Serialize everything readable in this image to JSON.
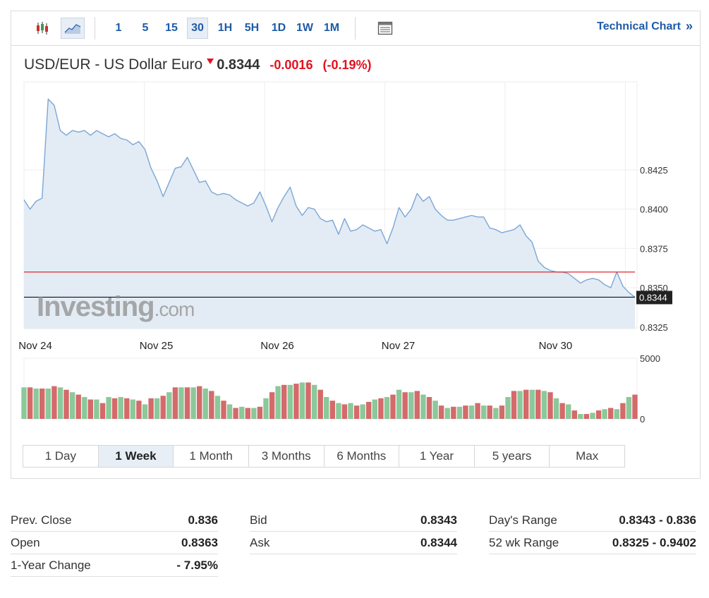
{
  "toolbar": {
    "chart_type_icons": [
      "candlestick-icon",
      "area-chart-icon"
    ],
    "timeframes": [
      "1",
      "5",
      "15",
      "30",
      "1H",
      "5H",
      "1D",
      "1W",
      "1M"
    ],
    "active_timeframe": "30",
    "layout_icon": "chart-layout-icon",
    "technical_chart_label": "Technical Chart",
    "technical_chart_arrow": "»"
  },
  "headline": {
    "name": "USD/EUR - US Dollar Euro",
    "last": "0.8344",
    "change": "-0.0016",
    "change_pct": "(-0.19%)"
  },
  "colors": {
    "line": "#7ba6d6",
    "area": "#e3ecf4",
    "prev_close_line": "#e2262b",
    "last_line": "#111111",
    "vol_up": "#8bc89a",
    "vol_down": "#d46a6a",
    "negative": "#e4101f",
    "link": "#1e5ba7"
  },
  "watermark": "Investing.com",
  "last_price_label": "0.8344",
  "chart_data": {
    "type": "area",
    "title": "USD/EUR - US Dollar Euro",
    "xlabel": "",
    "ylabel": "",
    "ylim": [
      0.8324,
      0.8481
    ],
    "y_ticks": [
      "0.8425",
      "0.8400",
      "0.8375",
      "0.8350",
      "0.8325"
    ],
    "y_tick_values": [
      0.8425,
      0.84,
      0.8375,
      0.835,
      0.8325
    ],
    "x_tick_labels": [
      "Nov 24",
      "Nov 25",
      "Nov 26",
      "Nov 27",
      "Nov 30"
    ],
    "x_tick_positions": [
      0.5,
      20.5,
      40.5,
      60.5,
      86.5
    ],
    "x_range": [
      0,
      101
    ],
    "prev_close": 0.836,
    "last": 0.8344,
    "grid": true,
    "legend": "none",
    "series": [
      {
        "values": [
          0.8406,
          0.84,
          0.8405,
          0.8407,
          0.847,
          0.8466,
          0.845,
          0.8447,
          0.845,
          0.8449,
          0.845,
          0.8447,
          0.845,
          0.8448,
          0.8446,
          0.8448,
          0.8445,
          0.8444,
          0.8441,
          0.8443,
          0.8438,
          0.8426,
          0.8418,
          0.8408,
          0.8417,
          0.8426,
          0.8427,
          0.8433,
          0.8425,
          0.8417,
          0.8418,
          0.8411,
          0.8409,
          0.841,
          0.8409,
          0.8406,
          0.8404,
          0.8402,
          0.8404,
          0.8411,
          0.8402,
          0.8392,
          0.8401,
          0.8408,
          0.8414,
          0.8402,
          0.8396,
          0.8401,
          0.84,
          0.8394,
          0.8392,
          0.8393,
          0.8384,
          0.8394,
          0.8386,
          0.8387,
          0.839,
          0.8388,
          0.8386,
          0.8387,
          0.8378,
          0.8388,
          0.8401,
          0.8395,
          0.84,
          0.841,
          0.8405,
          0.8408,
          0.84,
          0.8396,
          0.8393,
          0.8393,
          0.8394,
          0.8395,
          0.8396,
          0.8395,
          0.8395,
          0.8388,
          0.8387,
          0.8385,
          0.8386,
          0.8387,
          0.839,
          0.8383,
          0.8379,
          0.8367,
          0.8363,
          0.8361,
          0.836,
          0.836,
          0.8359,
          0.8356,
          0.8353,
          0.8355,
          0.8356,
          0.8355,
          0.8352,
          0.835,
          0.836,
          0.8351,
          0.8347,
          0.8344
        ]
      }
    ],
    "volume": {
      "ylim": [
        0,
        5000
      ],
      "y_ticks": [
        "5000",
        "0"
      ],
      "y_tick_values": [
        5000,
        0
      ],
      "values": [
        2600,
        2600,
        2500,
        2500,
        2500,
        2700,
        2600,
        2400,
        2200,
        2000,
        1800,
        1600,
        1600,
        1300,
        1800,
        1700,
        1800,
        1700,
        1600,
        1500,
        1200,
        1700,
        1700,
        1900,
        2200,
        2600,
        2600,
        2600,
        2600,
        2700,
        2500,
        2300,
        1900,
        1500,
        1200,
        900,
        1000,
        900,
        900,
        1000,
        1700,
        2200,
        2700,
        2800,
        2800,
        2900,
        3000,
        3000,
        2800,
        2400,
        1800,
        1500,
        1300,
        1200,
        1300,
        1100,
        1200,
        1400,
        1600,
        1700,
        1800,
        2000,
        2400,
        2200,
        2200,
        2300,
        2000,
        1800,
        1500,
        1100,
        900,
        1000,
        1000,
        1100,
        1100,
        1300,
        1100,
        1100,
        900,
        1100,
        1800,
        2300,
        2300,
        2400,
        2400,
        2400,
        2300,
        2200,
        1700,
        1300,
        1200,
        700,
        400,
        400,
        500,
        700,
        800,
        900,
        800,
        1300,
        1800,
        2000
      ],
      "colors": [
        "up",
        "down",
        "up",
        "down",
        "up",
        "down",
        "up",
        "down",
        "up",
        "down",
        "up",
        "down",
        "up",
        "down",
        "up",
        "down",
        "up",
        "down",
        "up",
        "down",
        "up",
        "down",
        "up",
        "down",
        "up",
        "down",
        "up",
        "down",
        "up",
        "down",
        "up",
        "down",
        "up",
        "down",
        "up",
        "down",
        "up",
        "down",
        "up",
        "down",
        "up",
        "down",
        "up",
        "down",
        "up",
        "down",
        "up",
        "down",
        "up",
        "down",
        "up",
        "down",
        "up",
        "down",
        "up",
        "down",
        "up",
        "down",
        "up",
        "down",
        "up",
        "down",
        "up",
        "down",
        "up",
        "down",
        "up",
        "down",
        "up",
        "down",
        "up",
        "down",
        "up",
        "down",
        "up",
        "down",
        "up",
        "down",
        "up",
        "down",
        "up",
        "down",
        "up",
        "down",
        "up",
        "down",
        "up",
        "down",
        "up",
        "down",
        "up",
        "down",
        "up",
        "down",
        "up",
        "down",
        "up",
        "down",
        "up",
        "down",
        "up",
        "down"
      ]
    }
  },
  "range_tabs": [
    "1 Day",
    "1 Week",
    "1 Month",
    "3 Months",
    "6 Months",
    "1 Year",
    "5 years",
    "Max"
  ],
  "active_range": "1 Week",
  "stats": {
    "col1": [
      {
        "label": "Prev. Close",
        "value": "0.836"
      },
      {
        "label": "Open",
        "value": "0.8363"
      },
      {
        "label": "1-Year Change",
        "value": "- 7.95%"
      }
    ],
    "col2": [
      {
        "label": "Bid",
        "value": "0.8343"
      },
      {
        "label": "Ask",
        "value": "0.8344"
      }
    ],
    "col3": [
      {
        "label": "Day's Range",
        "value": "0.8343 - 0.836"
      },
      {
        "label": "52 wk Range",
        "value": "0.8325 - 0.9402"
      }
    ]
  }
}
